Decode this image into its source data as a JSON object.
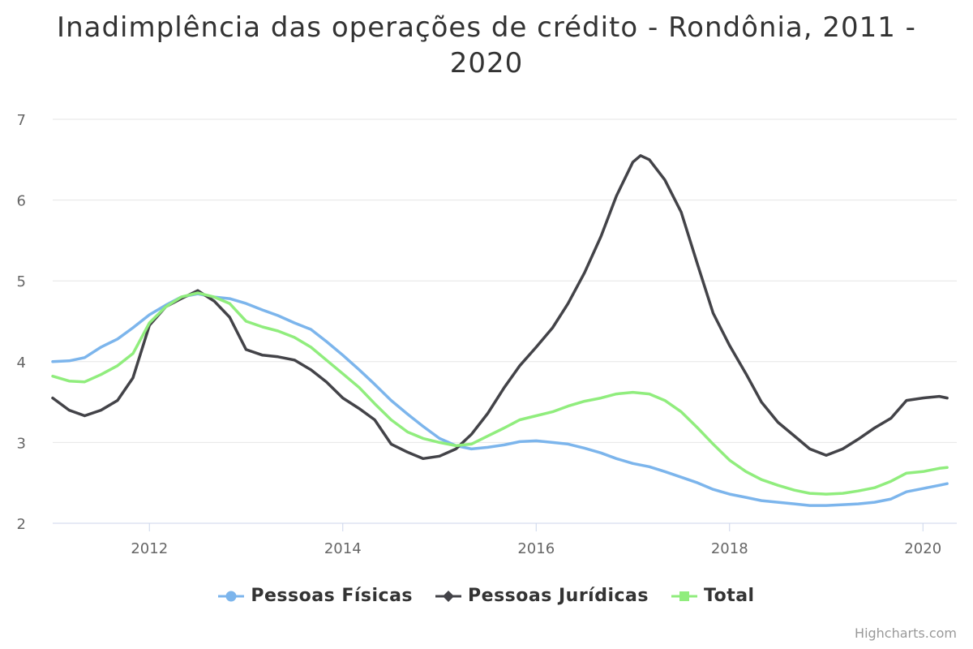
{
  "title_line1": "Inadimplência das operações de crédito - Rondônia, 2011 -",
  "title_line2": "2020",
  "credits": "Highcharts.com",
  "colors": {
    "pf": "#7cb5ec",
    "pj": "#434348",
    "total": "#90ed7d",
    "grid": "#e6e6e6",
    "axis": "#ccd6eb",
    "tick_label": "#666666"
  },
  "legend": [
    {
      "name": "Pessoas Físicas",
      "symbol": "circle",
      "color": "#7cb5ec"
    },
    {
      "name": "Pessoas Jurídicas",
      "symbol": "diamond",
      "color": "#434348"
    },
    {
      "name": "Total",
      "symbol": "square",
      "color": "#90ed7d"
    }
  ],
  "chart_data": {
    "type": "line",
    "title": "Inadimplência das operações de crédito - Rondônia, 2011 - 2020",
    "xlabel": "",
    "ylabel": "",
    "x_ticks": [
      "2012",
      "2014",
      "2016",
      "2018",
      "2020"
    ],
    "y_ticks": [
      "2",
      "3",
      "4",
      "5",
      "6",
      "7"
    ],
    "xlim": [
      2011.0,
      2020.35
    ],
    "ylim": [
      2,
      7
    ],
    "grid": true,
    "legend_position": "bottom",
    "series": [
      {
        "name": "Pessoas Físicas",
        "points": [
          [
            2011.0,
            4.0
          ],
          [
            2011.17,
            4.01
          ],
          [
            2011.33,
            4.05
          ],
          [
            2011.5,
            4.18
          ],
          [
            2011.67,
            4.28
          ],
          [
            2011.83,
            4.42
          ],
          [
            2012.0,
            4.58
          ],
          [
            2012.17,
            4.7
          ],
          [
            2012.33,
            4.8
          ],
          [
            2012.5,
            4.84
          ],
          [
            2012.67,
            4.8
          ],
          [
            2012.83,
            4.78
          ],
          [
            2013.0,
            4.72
          ],
          [
            2013.17,
            4.64
          ],
          [
            2013.33,
            4.57
          ],
          [
            2013.5,
            4.48
          ],
          [
            2013.67,
            4.4
          ],
          [
            2013.83,
            4.25
          ],
          [
            2014.0,
            4.08
          ],
          [
            2014.17,
            3.9
          ],
          [
            2014.33,
            3.72
          ],
          [
            2014.5,
            3.52
          ],
          [
            2014.67,
            3.35
          ],
          [
            2014.83,
            3.2
          ],
          [
            2015.0,
            3.05
          ],
          [
            2015.17,
            2.96
          ],
          [
            2015.33,
            2.92
          ],
          [
            2015.5,
            2.94
          ],
          [
            2015.67,
            2.97
          ],
          [
            2015.83,
            3.01
          ],
          [
            2016.0,
            3.02
          ],
          [
            2016.17,
            3.0
          ],
          [
            2016.33,
            2.98
          ],
          [
            2016.5,
            2.93
          ],
          [
            2016.67,
            2.87
          ],
          [
            2016.83,
            2.8
          ],
          [
            2017.0,
            2.74
          ],
          [
            2017.17,
            2.7
          ],
          [
            2017.33,
            2.64
          ],
          [
            2017.5,
            2.57
          ],
          [
            2017.67,
            2.5
          ],
          [
            2017.83,
            2.42
          ],
          [
            2018.0,
            2.36
          ],
          [
            2018.17,
            2.32
          ],
          [
            2018.33,
            2.28
          ],
          [
            2018.5,
            2.26
          ],
          [
            2018.67,
            2.24
          ],
          [
            2018.83,
            2.22
          ],
          [
            2019.0,
            2.22
          ],
          [
            2019.17,
            2.23
          ],
          [
            2019.33,
            2.24
          ],
          [
            2019.5,
            2.26
          ],
          [
            2019.67,
            2.3
          ],
          [
            2019.83,
            2.39
          ],
          [
            2020.0,
            2.43
          ],
          [
            2020.17,
            2.47
          ],
          [
            2020.25,
            2.49
          ]
        ]
      },
      {
        "name": "Pessoas Jurídicas",
        "points": [
          [
            2011.0,
            3.55
          ],
          [
            2011.17,
            3.4
          ],
          [
            2011.33,
            3.33
          ],
          [
            2011.5,
            3.4
          ],
          [
            2011.67,
            3.52
          ],
          [
            2011.83,
            3.8
          ],
          [
            2012.0,
            4.45
          ],
          [
            2012.17,
            4.68
          ],
          [
            2012.33,
            4.78
          ],
          [
            2012.5,
            4.88
          ],
          [
            2012.67,
            4.75
          ],
          [
            2012.83,
            4.55
          ],
          [
            2013.0,
            4.15
          ],
          [
            2013.17,
            4.08
          ],
          [
            2013.33,
            4.06
          ],
          [
            2013.5,
            4.02
          ],
          [
            2013.67,
            3.9
          ],
          [
            2013.83,
            3.75
          ],
          [
            2014.0,
            3.55
          ],
          [
            2014.17,
            3.42
          ],
          [
            2014.33,
            3.28
          ],
          [
            2014.5,
            2.98
          ],
          [
            2014.67,
            2.88
          ],
          [
            2014.83,
            2.8
          ],
          [
            2015.0,
            2.83
          ],
          [
            2015.17,
            2.92
          ],
          [
            2015.33,
            3.1
          ],
          [
            2015.5,
            3.36
          ],
          [
            2015.67,
            3.68
          ],
          [
            2015.83,
            3.95
          ],
          [
            2016.0,
            4.18
          ],
          [
            2016.17,
            4.42
          ],
          [
            2016.33,
            4.72
          ],
          [
            2016.5,
            5.1
          ],
          [
            2016.67,
            5.55
          ],
          [
            2016.83,
            6.05
          ],
          [
            2017.0,
            6.47
          ],
          [
            2017.08,
            6.55
          ],
          [
            2017.17,
            6.5
          ],
          [
            2017.33,
            6.25
          ],
          [
            2017.5,
            5.85
          ],
          [
            2017.67,
            5.2
          ],
          [
            2017.83,
            4.6
          ],
          [
            2018.0,
            4.2
          ],
          [
            2018.17,
            3.85
          ],
          [
            2018.33,
            3.5
          ],
          [
            2018.5,
            3.25
          ],
          [
            2018.67,
            3.08
          ],
          [
            2018.83,
            2.92
          ],
          [
            2019.0,
            2.84
          ],
          [
            2019.17,
            2.92
          ],
          [
            2019.33,
            3.04
          ],
          [
            2019.5,
            3.18
          ],
          [
            2019.67,
            3.3
          ],
          [
            2019.83,
            3.52
          ],
          [
            2020.0,
            3.55
          ],
          [
            2020.17,
            3.57
          ],
          [
            2020.25,
            3.55
          ]
        ]
      },
      {
        "name": "Total",
        "points": [
          [
            2011.0,
            3.82
          ],
          [
            2011.17,
            3.76
          ],
          [
            2011.33,
            3.75
          ],
          [
            2011.5,
            3.84
          ],
          [
            2011.67,
            3.95
          ],
          [
            2011.83,
            4.1
          ],
          [
            2012.0,
            4.48
          ],
          [
            2012.17,
            4.68
          ],
          [
            2012.33,
            4.8
          ],
          [
            2012.5,
            4.85
          ],
          [
            2012.67,
            4.8
          ],
          [
            2012.83,
            4.72
          ],
          [
            2013.0,
            4.5
          ],
          [
            2013.17,
            4.43
          ],
          [
            2013.33,
            4.38
          ],
          [
            2013.5,
            4.3
          ],
          [
            2013.67,
            4.18
          ],
          [
            2013.83,
            4.02
          ],
          [
            2014.0,
            3.85
          ],
          [
            2014.17,
            3.68
          ],
          [
            2014.33,
            3.48
          ],
          [
            2014.5,
            3.28
          ],
          [
            2014.67,
            3.13
          ],
          [
            2014.83,
            3.05
          ],
          [
            2015.0,
            3.0
          ],
          [
            2015.17,
            2.96
          ],
          [
            2015.33,
            2.98
          ],
          [
            2015.5,
            3.08
          ],
          [
            2015.67,
            3.18
          ],
          [
            2015.83,
            3.28
          ],
          [
            2016.0,
            3.33
          ],
          [
            2016.17,
            3.38
          ],
          [
            2016.33,
            3.45
          ],
          [
            2016.5,
            3.51
          ],
          [
            2016.67,
            3.55
          ],
          [
            2016.83,
            3.6
          ],
          [
            2017.0,
            3.62
          ],
          [
            2017.17,
            3.6
          ],
          [
            2017.33,
            3.52
          ],
          [
            2017.5,
            3.38
          ],
          [
            2017.67,
            3.18
          ],
          [
            2017.83,
            2.98
          ],
          [
            2018.0,
            2.78
          ],
          [
            2018.17,
            2.64
          ],
          [
            2018.33,
            2.54
          ],
          [
            2018.5,
            2.47
          ],
          [
            2018.67,
            2.41
          ],
          [
            2018.83,
            2.37
          ],
          [
            2019.0,
            2.36
          ],
          [
            2019.17,
            2.37
          ],
          [
            2019.33,
            2.4
          ],
          [
            2019.5,
            2.44
          ],
          [
            2019.67,
            2.52
          ],
          [
            2019.83,
            2.62
          ],
          [
            2020.0,
            2.64
          ],
          [
            2020.17,
            2.68
          ],
          [
            2020.25,
            2.69
          ]
        ]
      }
    ]
  }
}
